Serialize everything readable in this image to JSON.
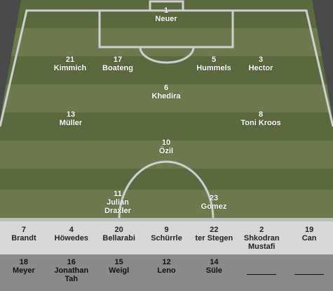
{
  "formation": {
    "players": [
      {
        "id": "gk",
        "number": "1",
        "name": "Neuer"
      },
      {
        "id": "rb",
        "number": "21",
        "name": "Kimmich"
      },
      {
        "id": "rcb",
        "number": "17",
        "name": "Boateng"
      },
      {
        "id": "lcb",
        "number": "5",
        "name": "Hummels"
      },
      {
        "id": "lb",
        "number": "3",
        "name": "Hector"
      },
      {
        "id": "dm",
        "number": "6",
        "name": "Khedira"
      },
      {
        "id": "rm",
        "number": "13",
        "name": "Müller"
      },
      {
        "id": "lm",
        "number": "8",
        "name": "Toni Kroos"
      },
      {
        "id": "am",
        "number": "10",
        "name": "Özil"
      },
      {
        "id": "st1",
        "number": "11",
        "name": "Julian\nDraxler"
      },
      {
        "id": "st2",
        "number": "23",
        "name": "Gomez"
      }
    ]
  },
  "bench": {
    "row1": [
      {
        "number": "7",
        "name": "Brandt"
      },
      {
        "number": "4",
        "name": "Höwedes"
      },
      {
        "number": "20",
        "name": "Bellarabi"
      },
      {
        "number": "9",
        "name": "Schürrle"
      },
      {
        "number": "22",
        "name": "ter Stegen"
      },
      {
        "number": "2",
        "name": "Shkodran\nMustafi"
      },
      {
        "number": "19",
        "name": "Can"
      }
    ],
    "row2": [
      {
        "number": "18",
        "name": "Meyer"
      },
      {
        "number": "16",
        "name": "Jonathan\nTah"
      },
      {
        "number": "15",
        "name": "Weigl"
      },
      {
        "number": "12",
        "name": "Leno"
      },
      {
        "number": "14",
        "name": "Süle"
      }
    ],
    "empty_slots": 2
  },
  "colors": {
    "pitch_light": "#6c7a4d",
    "pitch_dark": "#5b6a3e",
    "lines": "#cfcfcf",
    "bench_row1": "#d7d7d7",
    "bench_row2": "#8a8a8a"
  }
}
